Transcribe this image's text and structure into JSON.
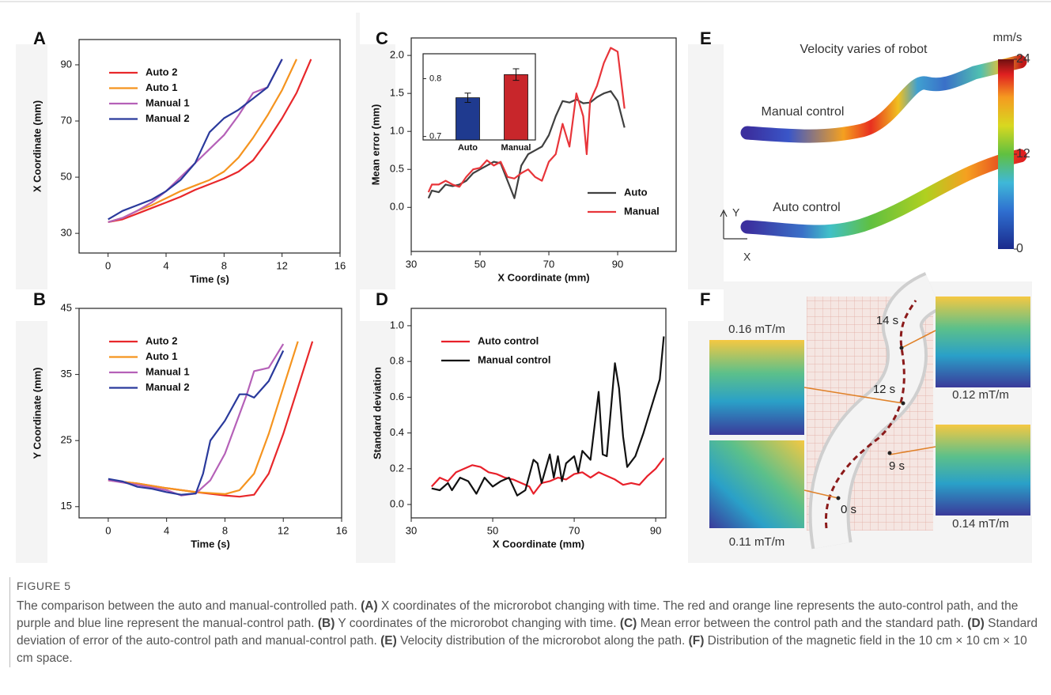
{
  "chart_data": [
    {
      "type": "line",
      "panel": "A",
      "xlabel": "Time (s)",
      "ylabel": "X Coordinate (mm)",
      "xlim": [
        -2,
        16
      ],
      "ylim": [
        23,
        99
      ],
      "xticks": [
        0,
        4,
        8,
        12,
        16
      ],
      "yticks": [
        30,
        50,
        70,
        90
      ],
      "legend": "upper left",
      "series": [
        {
          "name": "Auto 2",
          "color": "#e8282b",
          "x": [
            0,
            1,
            2,
            3,
            4,
            5,
            6,
            7,
            8,
            9,
            10,
            11,
            12,
            13,
            14
          ],
          "values": [
            34,
            35,
            37,
            39,
            41,
            43,
            45.5,
            47.5,
            49.5,
            52,
            56,
            63,
            71,
            80,
            92
          ]
        },
        {
          "name": "Auto 1",
          "color": "#f5941f",
          "x": [
            0,
            1,
            2,
            3,
            4,
            5,
            6,
            7,
            8,
            9,
            10,
            11,
            12,
            13
          ],
          "values": [
            34,
            35.5,
            38,
            40,
            42.5,
            45,
            47,
            49,
            52,
            57,
            64,
            72,
            81,
            92
          ]
        },
        {
          "name": "Manual 1",
          "color": "#b561b8",
          "x": [
            0,
            1,
            2,
            3,
            4,
            5,
            6,
            7,
            8,
            9,
            10,
            11,
            12
          ],
          "values": [
            34,
            35.5,
            38,
            41,
            45,
            50,
            55,
            60,
            65,
            72,
            80,
            82,
            92
          ]
        },
        {
          "name": "Manual 2",
          "color": "#2a3a9c",
          "x": [
            0,
            1,
            2,
            3,
            4,
            5,
            6,
            7,
            8,
            9,
            10,
            11,
            12
          ],
          "values": [
            35,
            38,
            40,
            42,
            45,
            49,
            55,
            66,
            71,
            74,
            78,
            82,
            92
          ]
        }
      ]
    },
    {
      "type": "line",
      "panel": "B",
      "xlabel": "Time (s)",
      "ylabel": "Y Coordinate (mm)",
      "xlim": [
        -2,
        16
      ],
      "ylim": [
        13.3,
        45
      ],
      "xticks": [
        0,
        4,
        8,
        12,
        16
      ],
      "yticks": [
        15,
        25,
        35,
        45
      ],
      "legend": "upper left",
      "series": [
        {
          "name": "Auto 2",
          "color": "#e8282b",
          "x": [
            0,
            2,
            4,
            6,
            8,
            9,
            10,
            11,
            12,
            13,
            14
          ],
          "values": [
            19,
            18.5,
            17.8,
            17.2,
            16.7,
            16.5,
            16.8,
            20,
            26,
            33,
            40
          ]
        },
        {
          "name": "Auto 1",
          "color": "#f5941f",
          "x": [
            0,
            2,
            4,
            6,
            8,
            9,
            10,
            11,
            12,
            13
          ],
          "values": [
            19,
            18.5,
            17.8,
            17.2,
            16.9,
            17.5,
            20,
            26,
            33,
            40
          ]
        },
        {
          "name": "Manual 1",
          "color": "#b561b8",
          "x": [
            0,
            2,
            4,
            5,
            6,
            7,
            8,
            9,
            9.5,
            10,
            11,
            12
          ],
          "values": [
            19,
            18.3,
            17.5,
            16.7,
            17,
            19,
            23,
            29,
            32,
            35.5,
            36,
            39.6
          ]
        },
        {
          "name": "Manual 2",
          "color": "#2a3a9c",
          "x": [
            0,
            1,
            2,
            3,
            4,
            5,
            6,
            6.5,
            7,
            8,
            9,
            9.5,
            10,
            11,
            12
          ],
          "values": [
            19.2,
            18.8,
            18,
            17.7,
            17.2,
            16.8,
            17,
            20,
            25,
            28,
            32,
            32,
            31.5,
            34,
            38.6
          ]
        }
      ]
    },
    {
      "type": "line",
      "panel": "C",
      "xlabel": "X Coordinate (mm)",
      "ylabel": "Mean error (mm)",
      "xlim": [
        30,
        107
      ],
      "ylim": [
        -0.58,
        2.23
      ],
      "xticks": [
        30,
        50,
        70,
        90
      ],
      "yticks": [
        {
          "value": 0,
          "label": "0.0"
        },
        0.5,
        {
          "value": 1,
          "label": "1.0"
        },
        1.5,
        {
          "value": 2,
          "label": "2.0"
        }
      ],
      "legend": "lower right",
      "series": [
        {
          "name": "Auto",
          "color": "#404040",
          "x": [
            35,
            36,
            38,
            40,
            42,
            44,
            46,
            48,
            50,
            52,
            54,
            56,
            58,
            60,
            62,
            64,
            66,
            68,
            70,
            72,
            74,
            76,
            78,
            80,
            82,
            84,
            86,
            88,
            90,
            92
          ],
          "values": [
            0.12,
            0.22,
            0.2,
            0.3,
            0.28,
            0.3,
            0.35,
            0.45,
            0.5,
            0.55,
            0.6,
            0.58,
            0.35,
            0.12,
            0.55,
            0.7,
            0.75,
            0.8,
            0.95,
            1.2,
            1.4,
            1.38,
            1.42,
            1.37,
            1.38,
            1.45,
            1.5,
            1.53,
            1.4,
            1.05
          ]
        },
        {
          "name": "Manual",
          "color": "#e8353a",
          "x": [
            35,
            36,
            38,
            40,
            42,
            44,
            46,
            48,
            50,
            52,
            54,
            56,
            58,
            60,
            62,
            64,
            66,
            68,
            70,
            72,
            74,
            76,
            78,
            80,
            81,
            82,
            84,
            86,
            88,
            90,
            92
          ],
          "values": [
            0.2,
            0.3,
            0.3,
            0.35,
            0.3,
            0.27,
            0.4,
            0.5,
            0.52,
            0.62,
            0.55,
            0.6,
            0.4,
            0.38,
            0.45,
            0.5,
            0.4,
            0.35,
            0.6,
            0.7,
            1.1,
            0.8,
            1.5,
            1.2,
            0.7,
            1.4,
            1.6,
            1.9,
            2.1,
            2.05,
            1.3
          ]
        }
      ],
      "inset": {
        "type": "bar",
        "categories": [
          "Auto",
          "Manual"
        ],
        "values": [
          0.767,
          0.807
        ],
        "errors": [
          0.008,
          0.01
        ],
        "colors": [
          "#1f3a8f",
          "#c8262b"
        ],
        "ylim": [
          0.694,
          0.843
        ],
        "yticks": [
          0.7,
          0.8
        ]
      }
    },
    {
      "type": "line",
      "panel": "D",
      "xlabel": "X Coordinate (mm)",
      "ylabel": "Standard deviation",
      "xlim": [
        30,
        92.5
      ],
      "ylim": [
        -0.075,
        1.097
      ],
      "xticks": [
        30,
        50,
        70,
        90
      ],
      "yticks": [
        {
          "value": 0,
          "label": "0.0"
        },
        0.2,
        0.4,
        0.6,
        0.8,
        {
          "value": 1,
          "label": "1.0"
        }
      ],
      "legend": "upper left",
      "series": [
        {
          "name": "Auto control",
          "color": "#e8202a",
          "x": [
            35,
            37,
            39,
            41,
            43,
            45,
            47,
            49,
            51,
            53,
            55,
            57,
            59,
            60,
            62,
            64,
            66,
            68,
            70,
            72,
            74,
            76,
            78,
            80,
            82,
            84,
            86,
            88,
            90,
            92
          ],
          "values": [
            0.1,
            0.15,
            0.13,
            0.18,
            0.2,
            0.22,
            0.21,
            0.18,
            0.17,
            0.15,
            0.14,
            0.12,
            0.1,
            0.06,
            0.12,
            0.13,
            0.15,
            0.14,
            0.17,
            0.18,
            0.15,
            0.18,
            0.16,
            0.14,
            0.11,
            0.12,
            0.11,
            0.16,
            0.2,
            0.26
          ]
        },
        {
          "name": "Manual control",
          "color": "#111111",
          "x": [
            35,
            37,
            39,
            40,
            42,
            44,
            46,
            48,
            50,
            52,
            54,
            56,
            58,
            60,
            61,
            62,
            64,
            65,
            66,
            67,
            68,
            70,
            71,
            72,
            74,
            76,
            77,
            78,
            80,
            81,
            82,
            83,
            85,
            87,
            89,
            91,
            92
          ],
          "values": [
            0.09,
            0.08,
            0.12,
            0.08,
            0.15,
            0.13,
            0.06,
            0.15,
            0.1,
            0.13,
            0.15,
            0.05,
            0.08,
            0.25,
            0.23,
            0.12,
            0.28,
            0.15,
            0.27,
            0.13,
            0.23,
            0.27,
            0.18,
            0.3,
            0.25,
            0.63,
            0.28,
            0.27,
            0.79,
            0.65,
            0.38,
            0.21,
            0.27,
            0.4,
            0.55,
            0.7,
            0.94
          ]
        }
      ]
    }
  ],
  "panels": {
    "E": {
      "panel": "E",
      "title": "Velocity varies of robot",
      "manual_label": "Manual control",
      "auto_label": "Auto control",
      "axis_y": "Y",
      "axis_x": "X",
      "colorbar": {
        "unit": "mm/s",
        "lim": [
          0,
          24
        ],
        "ticks": [
          0,
          12,
          24
        ]
      }
    },
    "F": {
      "panel": "F",
      "fields": [
        "0.16 mT/m",
        "0.12 mT/m",
        "0.11 mT/m",
        "0.14 mT/m"
      ],
      "times": [
        "14 s",
        "12 s",
        "9 s",
        "0 s"
      ]
    }
  },
  "caption": {
    "label": "FIGURE 5",
    "parts": [
      {
        "text": "The comparison between the auto and manual-controlled path. "
      },
      {
        "text": "(A)",
        "bold": true
      },
      {
        "text": " X coordinates of the microrobot changing with time. The red and orange line represents the auto-control path, and the purple and blue line represent the manual-control path. "
      },
      {
        "text": "(B)",
        "bold": true
      },
      {
        "text": " Y coordinates of the microrobot changing with time. "
      },
      {
        "text": "(C)",
        "bold": true
      },
      {
        "text": " Mean error between the control path and the standard path. "
      },
      {
        "text": "(D)",
        "bold": true
      },
      {
        "text": " Standard deviation of error of the auto-control path and manual-control path. "
      },
      {
        "text": "(E)",
        "bold": true
      },
      {
        "text": " Velocity distribution of the microrobot along the path. "
      },
      {
        "text": "(F)",
        "bold": true
      },
      {
        "text": " Distribution of the magnetic field in the 10 cm × 10 cm × 10 cm space."
      }
    ]
  }
}
